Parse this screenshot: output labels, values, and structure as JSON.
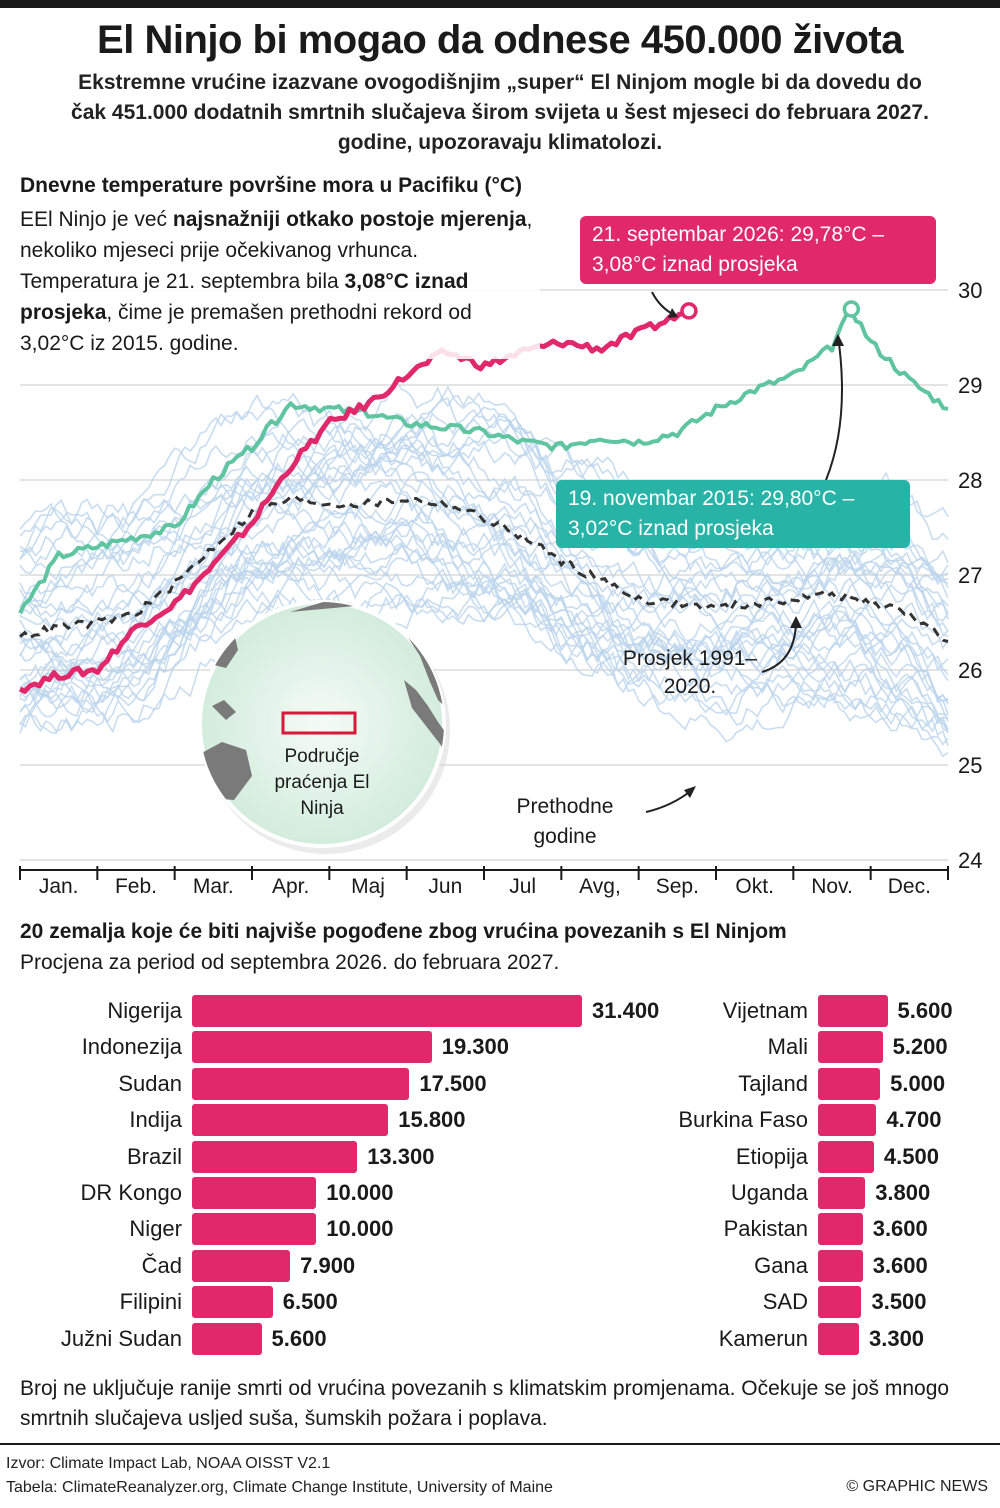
{
  "header": {
    "title": "El Ninjo bi mogao da odnese 450.000 života",
    "subtitle": "Ekstremne vrućine izazvane ovogodišnjim „super“ El Ninjom mogle bi da dovedu do čak 451.000 dodatnih smrtnih slučajeva širom svijeta u šest mjeseci do februara 2027. godine, upozoravaju klimatolozi."
  },
  "chart_data": [
    {
      "type": "line",
      "title": "Dnevne temperature površine mora u Pacifiku (°C)",
      "intro": {
        "part1": "EEl Ninjo je već ",
        "bold1": "najsnažniji otkako postoje mjerenja",
        "part2": ", nekoliko mjeseci prije očekivanog  vrhunca. Temperatura je 21. septembra bila ",
        "bold2": "3,08°C iznad prosjeka",
        "part3": ", čime je premašen prethodni rekord od 3,02°C iz 2015. godine."
      },
      "x_categories": [
        "Jan.",
        "Feb.",
        "Mar.",
        "Apr.",
        "Maj",
        "Jun",
        "Jul",
        "Avg,",
        "Sep.",
        "Okt.",
        "Nov.",
        "Dec."
      ],
      "y_ticks": [
        "24",
        "25",
        "26",
        "27",
        "28",
        "29",
        "30"
      ],
      "ylim": [
        24,
        30
      ],
      "grid": true,
      "colors": {
        "current": "#e0286a",
        "record": "#5fc4a0",
        "average": "#333333",
        "previous": "#bcd4ec"
      },
      "series": [
        {
          "name": "",
          "x": [
            0,
            0.5,
            1,
            1.5,
            2,
            2.5,
            3,
            3.5,
            4,
            4.5,
            5,
            5.5,
            6,
            6.5,
            7,
            7.5,
            8,
            8.65
          ],
          "values": [
            25.8,
            25.95,
            26.0,
            26.45,
            26.7,
            27.1,
            27.55,
            28.15,
            28.6,
            28.8,
            29.1,
            29.35,
            29.2,
            29.35,
            29.45,
            29.38,
            29.55,
            29.78
          ]
        },
        {
          "name": "",
          "x": [
            0,
            0.5,
            1,
            1.5,
            2,
            2.5,
            3,
            3.5,
            4,
            4.5,
            5,
            5.5,
            6,
            6.5,
            7,
            7.5,
            8,
            8.5,
            9,
            9.5,
            10,
            10.5,
            10.75,
            11,
            11.5,
            12
          ],
          "values": [
            26.6,
            27.2,
            27.3,
            27.4,
            27.5,
            28.0,
            28.35,
            28.8,
            28.75,
            28.7,
            28.6,
            28.55,
            28.5,
            28.4,
            28.35,
            28.45,
            28.4,
            28.5,
            28.75,
            28.95,
            29.1,
            29.4,
            29.8,
            29.45,
            29.05,
            28.75
          ]
        },
        {
          "name": "Prosjek 1991–2020.",
          "x": [
            0,
            0.5,
            1,
            1.5,
            2,
            2.5,
            3,
            3.5,
            4,
            4.5,
            5,
            5.5,
            6,
            6.5,
            7,
            7.5,
            8,
            8.5,
            9,
            9.5,
            10,
            10.5,
            11,
            11.5,
            12
          ],
          "values": [
            26.35,
            26.45,
            26.5,
            26.6,
            26.9,
            27.3,
            27.65,
            27.8,
            27.75,
            27.75,
            27.8,
            27.75,
            27.6,
            27.4,
            27.15,
            26.95,
            26.75,
            26.7,
            26.65,
            26.7,
            26.75,
            26.8,
            26.7,
            26.6,
            26.3
          ]
        },
        {
          "name": "Prethodne godine",
          "values": []
        }
      ],
      "annotations": {
        "current_peak": "21. septembar 2026: 29,78°C – 3,08°C iznad prosjeka",
        "record_peak": "19. novembar 2015: 29,80°C – 3,02°C iznad prosjeka",
        "average_label": "Prosjek 1991–2020.",
        "previous_label": "Prethodne godine",
        "map_label": "Područje praćenja El Ninja"
      }
    },
    {
      "type": "bar",
      "title": "20 zemalja koje će biti najviše pogođene zbog vrućina povezanih s El Ninjom",
      "subtitle": "Procjena za period od septembra 2026. do februara 2027.",
      "categories": [
        "Nigerija",
        "Indonezija",
        "Sudan",
        "Indija",
        "Brazil",
        "DR Kongo",
        "Niger",
        "Čad",
        "Filipini",
        "Južni Sudan",
        "Vijetnam",
        "Mali",
        "Tajland",
        "Burkina Faso",
        "Etiopija",
        "Uganda",
        "Pakistan",
        "Gana",
        "SAD",
        "Kamerun"
      ],
      "values": [
        31400,
        19300,
        17500,
        15800,
        13300,
        10000,
        10000,
        7900,
        6500,
        5600,
        5600,
        5200,
        5000,
        4700,
        4500,
        3800,
        3600,
        3600,
        3500,
        3300
      ],
      "value_labels": [
        "31.400",
        "19.300",
        "17.500",
        "15.800",
        "13.300",
        "10.000",
        "10.000",
        "7.900",
        "6.500",
        "5.600",
        "5.600",
        "5.200",
        "5.000",
        "4.700",
        "4.500",
        "3.800",
        "3.600",
        "3.600",
        "3.500",
        "3.300"
      ],
      "color": "#e0286a"
    }
  ],
  "footer": {
    "note": "Broj ne uključuje ranije smrti od vrućina povezanih s klimatskim promjenama. Očekuje se još mnogo smrtnih slučajeva usljed suša, šumskih požara i poplava.",
    "source1": "Izvor: Climate Impact Lab, NOAA OISST V2.1",
    "source2": "Tabela: ClimateReanalyzer.org, Climate Change Institute, University of Maine",
    "credit": "© GRAPHIC NEWS"
  }
}
